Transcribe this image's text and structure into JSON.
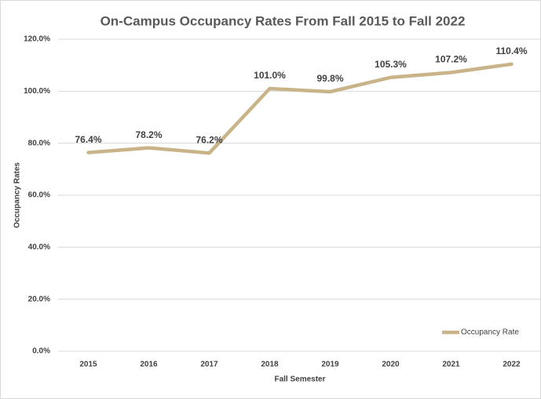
{
  "chart_data": {
    "type": "line",
    "title": "On-Campus Occupancy Rates From Fall 2015 to Fall 2022",
    "x_label": "Fall Semester",
    "y_label": "Occupancy Rates",
    "categories": [
      "2015",
      "2016",
      "2017",
      "2018",
      "2019",
      "2020",
      "2021",
      "2022"
    ],
    "series": [
      {
        "name": "Occupancy Rate",
        "color": "#c9b48a",
        "values": [
          76.4,
          78.2,
          76.2,
          101.0,
          99.8,
          105.3,
          107.2,
          110.4
        ],
        "value_labels": [
          "76.4%",
          "78.2%",
          "76.2%",
          "101.0%",
          "99.8%",
          "105.3%",
          "107.2%",
          "110.4%"
        ]
      }
    ],
    "ylim": [
      0,
      120
    ],
    "yticks": [
      {
        "value": 0,
        "label": "0.0%"
      },
      {
        "value": 20,
        "label": "20.0%"
      },
      {
        "value": 40,
        "label": "40.0%"
      },
      {
        "value": 60,
        "label": "60.0%"
      },
      {
        "value": 80,
        "label": "80.0%"
      },
      {
        "value": 100,
        "label": "100.0%"
      },
      {
        "value": 120,
        "label": "120.0%"
      }
    ],
    "grid": true,
    "legend": "lower right"
  }
}
